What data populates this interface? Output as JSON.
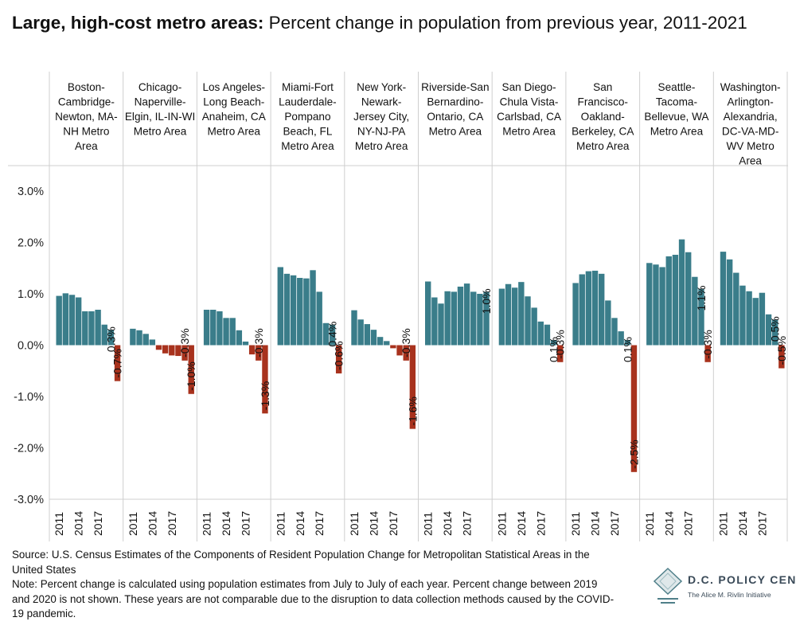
{
  "title": {
    "bold": "Large, high-cost metro areas:",
    "rest": " Percent change in population from previous year, 2011-2021"
  },
  "colors": {
    "positive": "#3a7d8a",
    "negative": "#a8321d",
    "grid": "#cfcfcf"
  },
  "footer": {
    "source": "Source: U.S. Census Estimates of the Components of Resident Population Change for Metropolitan Statistical Areas in the United States",
    "note": "Note: Percent change is calculated using population estimates from July to July of each year. Percent change between 2019 and 2020 is not shown. These years are not comparable due to the disruption to data collection methods caused by the COVID-19 pandemic."
  },
  "logo": {
    "name": "D.C. POLICY CENTER",
    "subtitle": "The Alice M. Rivlin Initiative"
  },
  "chart_data": {
    "type": "bar",
    "ylim": [
      -3.2,
      3.5
    ],
    "yticks": [
      3,
      2,
      1,
      0,
      -1,
      -2,
      -3
    ],
    "ytick_labels": [
      "3.0%",
      "2.0%",
      "1.0%",
      "0.0%",
      "-1.0%",
      "-2.0%",
      "-3.0%"
    ],
    "x_tick_labels": [
      "2011",
      "2014",
      "2017"
    ],
    "years": [
      "2011",
      "2012",
      "2013",
      "2014",
      "2015",
      "2016",
      "2017",
      "2018",
      "2019",
      "2021"
    ],
    "panels": [
      {
        "name": "Boston-Cambridge-Newton, MA-NH Metro Area",
        "header_lines": [
          "Boston-",
          "Cambridge-",
          "Newton, MA-",
          "NH Metro",
          "Area"
        ],
        "values": [
          0.96,
          1.01,
          0.98,
          0.93,
          0.66,
          0.66,
          0.69,
          0.4,
          0.3,
          -0.7
        ],
        "labels": [
          "0.3%",
          "-0.7%"
        ]
      },
      {
        "name": "Chicago-Naperville-Elgin, IL-IN-WI Metro Area",
        "header_lines": [
          "Chicago-",
          "Naperville-",
          "Elgin, IL-IN-WI",
          "Metro Area"
        ],
        "values": [
          0.32,
          0.29,
          0.22,
          0.11,
          -0.09,
          -0.16,
          -0.2,
          -0.21,
          -0.3,
          -0.95
        ],
        "labels": [
          "-0.3%",
          "-1.0%"
        ]
      },
      {
        "name": "Los Angeles-Long Beach-Anaheim, CA Metro Area",
        "header_lines": [
          "Los Angeles-",
          "Long Beach-",
          "Anaheim, CA",
          "Metro Area"
        ],
        "values": [
          0.69,
          0.69,
          0.66,
          0.53,
          0.53,
          0.29,
          0.07,
          -0.18,
          -0.3,
          -1.33
        ],
        "labels": [
          "-0.3%",
          "-1.3%"
        ]
      },
      {
        "name": "Miami-Fort Lauderdale-Pompano Beach, FL Metro Area",
        "header_lines": [
          "Miami-Fort",
          "Lauderdale-",
          "Pompano",
          "Beach, FL",
          "Metro Area"
        ],
        "values": [
          1.52,
          1.39,
          1.36,
          1.31,
          1.3,
          1.46,
          1.04,
          0.43,
          0.4,
          -0.55
        ],
        "labels": [
          "0.4%",
          "-0.6%"
        ]
      },
      {
        "name": "New York-Newark-Jersey City, NY-NJ-PA Metro Area",
        "header_lines": [
          "New York-",
          "Newark-",
          "Jersey City,",
          "NY-NJ-PA",
          "Metro Area"
        ],
        "values": [
          0.68,
          0.5,
          0.41,
          0.3,
          0.16,
          0.08,
          -0.06,
          -0.2,
          -0.3,
          -1.63
        ],
        "labels": [
          "-0.3%",
          "-1.6%"
        ]
      },
      {
        "name": "Riverside-San Bernardino-Ontario, CA Metro Area",
        "header_lines": [
          "Riverside-San",
          "Bernardino-",
          "Ontario, CA",
          "Metro Area"
        ],
        "values": [
          1.24,
          0.93,
          0.81,
          1.05,
          1.04,
          1.14,
          1.2,
          1.04,
          1.0,
          1.04
        ],
        "labels": [
          "1.0%"
        ]
      },
      {
        "name": "San Diego-Chula Vista-Carlsbad, CA Metro Area",
        "header_lines": [
          "San Diego-",
          "Chula Vista-",
          "Carlsbad, CA",
          "Metro Area"
        ],
        "values": [
          1.1,
          1.19,
          1.12,
          1.23,
          0.95,
          0.73,
          0.46,
          0.4,
          0.1,
          -0.33
        ],
        "labels": [
          "0.1%",
          "-0.3%"
        ]
      },
      {
        "name": "San Francisco-Oakland-Berkeley, CA Metro Area",
        "header_lines": [
          "San",
          "Francisco-",
          "Oakland-",
          "Berkeley, CA",
          "Metro Area"
        ],
        "values": [
          1.21,
          1.38,
          1.44,
          1.45,
          1.39,
          0.87,
          0.53,
          0.27,
          0.1,
          -2.47
        ],
        "labels": [
          "0.1%",
          "-2.5%"
        ]
      },
      {
        "name": "Seattle-Tacoma-Bellevue, WA Metro Area",
        "header_lines": [
          "Seattle-",
          "Tacoma-",
          "Bellevue, WA",
          "Metro Area"
        ],
        "values": [
          1.6,
          1.57,
          1.52,
          1.73,
          1.76,
          2.06,
          1.81,
          1.33,
          1.1,
          -0.33
        ],
        "labels": [
          "1.1%",
          "-0.3%"
        ]
      },
      {
        "name": "Washington-Arlington-Alexandria, DC-VA-MD-WV Metro Area",
        "header_lines": [
          "Washington-",
          "Arlington-",
          "Alexandria,",
          "DC-VA-MD-",
          "WV Metro",
          "Area"
        ],
        "values": [
          1.82,
          1.67,
          1.41,
          1.16,
          1.05,
          0.92,
          1.02,
          0.6,
          0.5,
          -0.45
        ],
        "labels": [
          "0.5%",
          "-0.5%"
        ]
      }
    ]
  }
}
